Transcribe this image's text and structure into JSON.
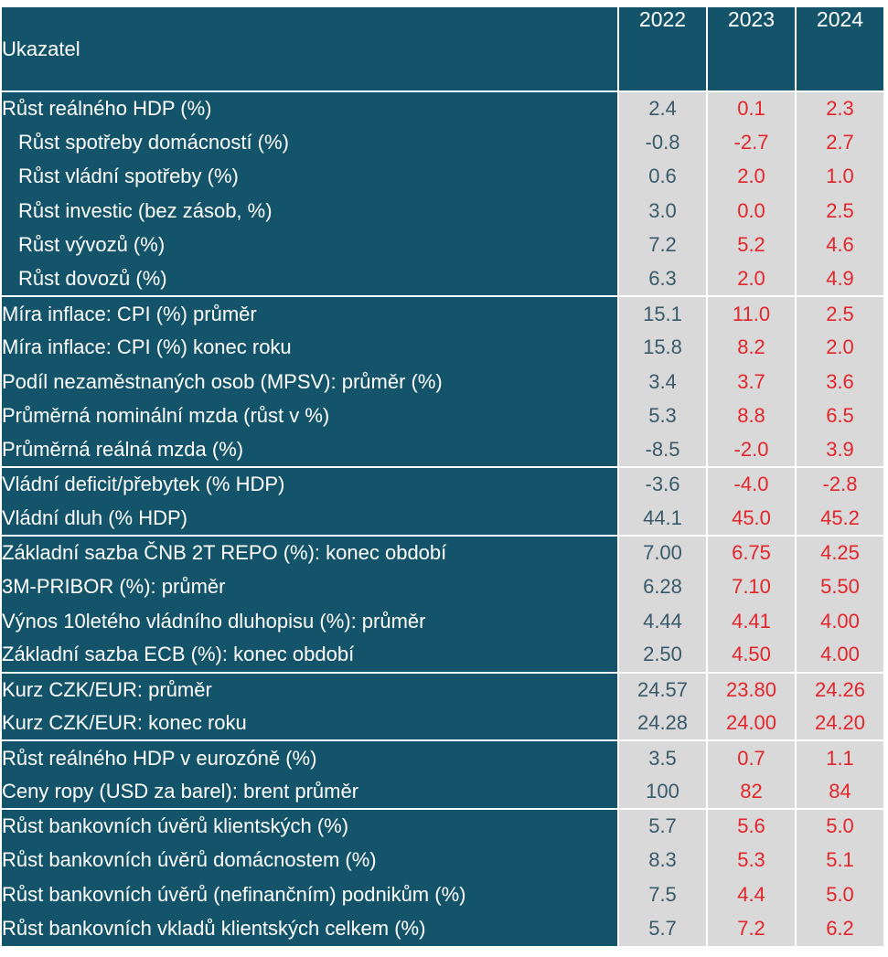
{
  "header": {
    "label": "Ukazatel",
    "years": [
      "2022",
      "2023",
      "2024"
    ]
  },
  "colors": {
    "header_bg": "#14546a",
    "cell_bg": "#d9d9d9",
    "actual_text": "#3a5a6a",
    "forecast_text": "#e3262b"
  },
  "rows": [
    {
      "label": "Růst reálného HDP (%)",
      "v": [
        "2.4",
        "0.1",
        "2.3"
      ]
    },
    {
      "label": "Růst spotřeby domácností (%)",
      "v": [
        "-0.8",
        "-2.7",
        "2.7"
      ]
    },
    {
      "label": "Růst vládní spotřeby (%)",
      "v": [
        "0.6",
        "2.0",
        "1.0"
      ]
    },
    {
      "label": "Růst investic (bez zásob, %)",
      "v": [
        "3.0",
        "0.0",
        "2.5"
      ]
    },
    {
      "label": "Růst vývozů (%)",
      "v": [
        "7.2",
        "5.2",
        "4.6"
      ]
    },
    {
      "label": "Růst dovozů (%)",
      "v": [
        "6.3",
        "2.0",
        "4.9"
      ]
    },
    {
      "label": "Míra inflace: CPI (%) průměr",
      "v": [
        "15.1",
        "11.0",
        "2.5"
      ]
    },
    {
      "label": "Míra inflace: CPI (%) konec roku",
      "v": [
        "15.8",
        "8.2",
        "2.0"
      ]
    },
    {
      "label": "Podíl nezaměstnaných osob (MPSV): průměr (%)",
      "v": [
        "3.4",
        "3.7",
        "3.6"
      ]
    },
    {
      "label": "Průměrná nominální mzda (růst v %)",
      "v": [
        "5.3",
        "8.8",
        "6.5"
      ]
    },
    {
      "label": "Průměrná reálná mzda (%)",
      "v": [
        "-8.5",
        "-2.0",
        "3.9"
      ]
    },
    {
      "label": "Vládní deficit/přebytek (% HDP)",
      "v": [
        "-3.6",
        "-4.0",
        "-2.8"
      ]
    },
    {
      "label": "Vládní dluh (% HDP)",
      "v": [
        "44.1",
        "45.0",
        "45.2"
      ]
    },
    {
      "label": "Základní sazba ČNB 2T REPO (%): konec období",
      "v": [
        "7.00",
        "6.75",
        "4.25"
      ]
    },
    {
      "label": "3M-PRIBOR (%): průměr",
      "v": [
        "6.28",
        "7.10",
        "5.50"
      ]
    },
    {
      "label": "Výnos 10letého vládního dluhopisu (%): průměr",
      "v": [
        "4.44",
        "4.41",
        "4.00"
      ]
    },
    {
      "label": "Základní sazba ECB (%): konec období",
      "v": [
        "2.50",
        "4.50",
        "4.00"
      ]
    },
    {
      "label": "Kurz CZK/EUR: průměr",
      "v": [
        "24.57",
        "23.80",
        "24.26"
      ]
    },
    {
      "label": "Kurz CZK/EUR: konec roku",
      "v": [
        "24.28",
        "24.00",
        "24.20"
      ]
    },
    {
      "label": "Růst reálného HDP v eurozóně (%)",
      "v": [
        "3.5",
        "0.7",
        "1.1"
      ]
    },
    {
      "label": "Ceny ropy (USD za barel): brent průměr",
      "v": [
        "100",
        "82",
        "84"
      ]
    },
    {
      "label": "Růst bankovních úvěrů klientských (%)",
      "v": [
        "5.7",
        "5.6",
        "5.0"
      ]
    },
    {
      "label": "Růst bankovních úvěrů domácnostem (%)",
      "v": [
        "8.3",
        "5.3",
        "5.1"
      ]
    },
    {
      "label": "Růst bankovních úvěrů (nefinančním) podnikům (%)",
      "v": [
        "7.5",
        "4.4",
        "5.0"
      ]
    },
    {
      "label": "Růst bankovních vkladů klientských celkem (%)",
      "v": [
        "5.7",
        "7.2",
        "6.2"
      ]
    }
  ]
}
